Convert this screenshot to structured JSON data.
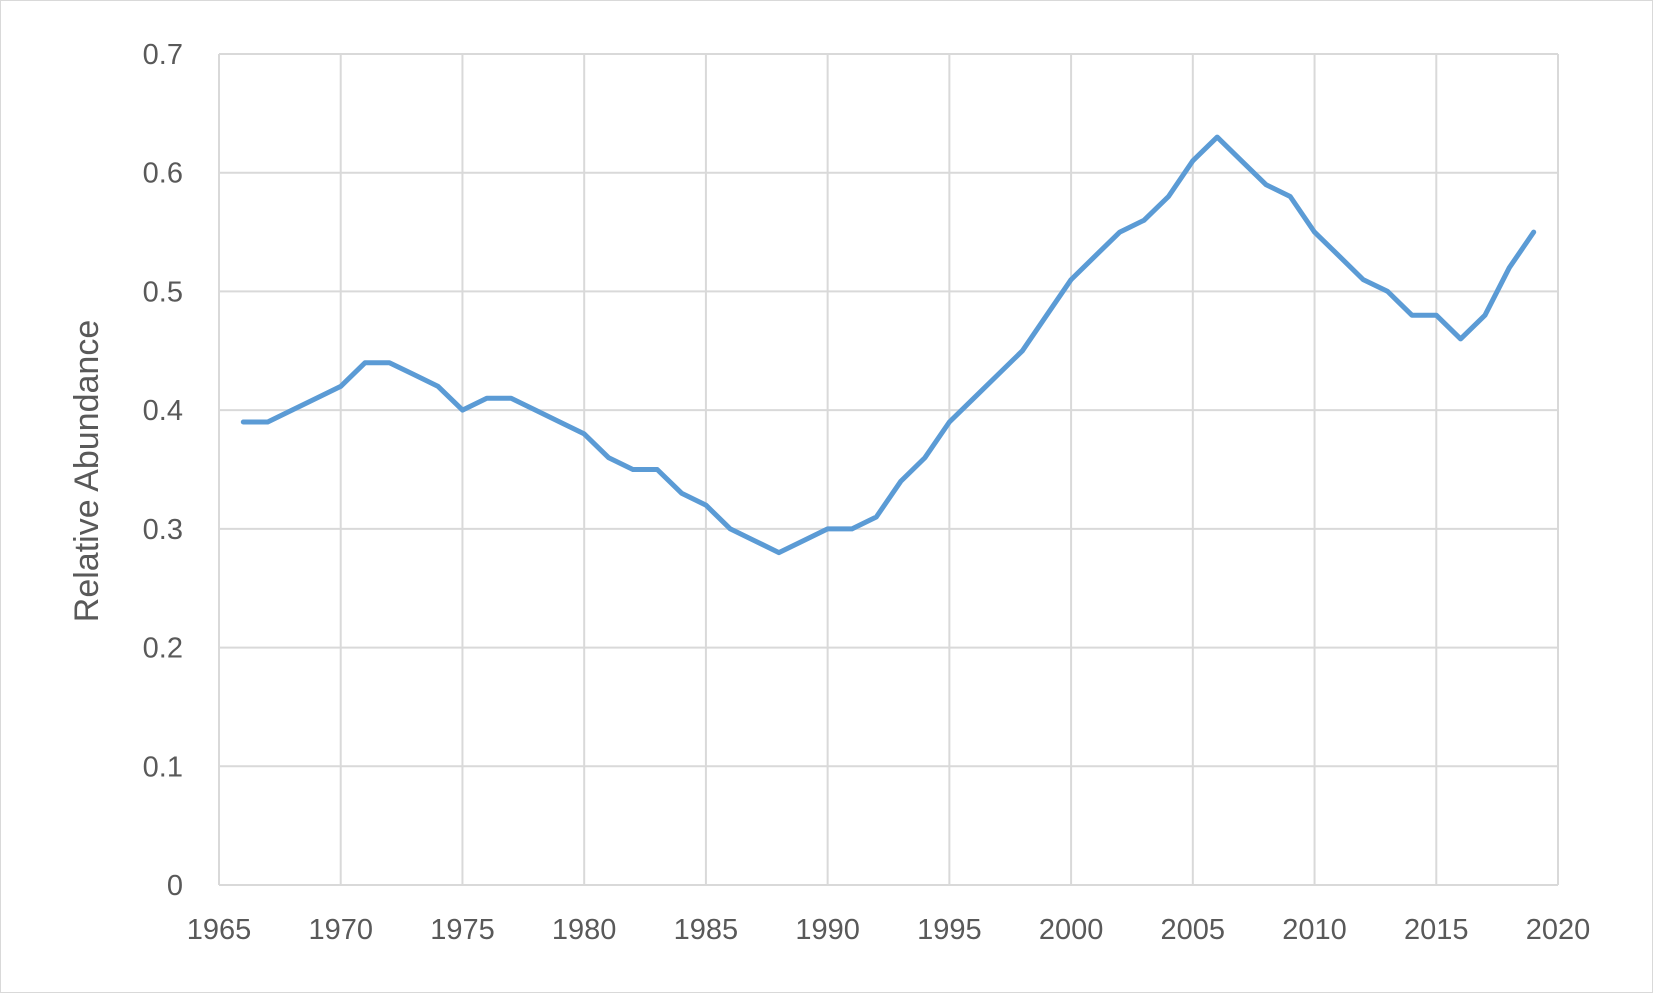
{
  "chart_data": {
    "type": "line",
    "title": "",
    "xlabel": "",
    "ylabel": "Relative Abundance",
    "xlim": [
      1965,
      2020
    ],
    "ylim": [
      0,
      0.7
    ],
    "x_ticks": [
      1965,
      1970,
      1975,
      1980,
      1985,
      1990,
      1995,
      2000,
      2005,
      2010,
      2015,
      2020
    ],
    "y_ticks": [
      0,
      0.1,
      0.2,
      0.3,
      0.4,
      0.5,
      0.6,
      0.7
    ],
    "x_tick_labels": [
      "1965",
      "1970",
      "1975",
      "1980",
      "1985",
      "1990",
      "1995",
      "2000",
      "2005",
      "2010",
      "2015",
      "2020"
    ],
    "y_tick_labels": [
      "0",
      "0.1",
      "0.2",
      "0.3",
      "0.4",
      "0.5",
      "0.6",
      "0.7"
    ],
    "grid": true,
    "legend": "none",
    "series": [
      {
        "color": "#5b9bd5",
        "x": [
          1966,
          1967,
          1968,
          1969,
          1970,
          1971,
          1972,
          1973,
          1974,
          1975,
          1976,
          1977,
          1978,
          1979,
          1980,
          1981,
          1982,
          1983,
          1984,
          1985,
          1986,
          1987,
          1988,
          1989,
          1990,
          1991,
          1992,
          1993,
          1994,
          1995,
          1996,
          1997,
          1998,
          1999,
          2000,
          2001,
          2002,
          2003,
          2004,
          2005,
          2006,
          2007,
          2008,
          2009,
          2010,
          2011,
          2012,
          2013,
          2014,
          2015,
          2016,
          2017,
          2018,
          2019
        ],
        "y": [
          0.39,
          0.39,
          0.4,
          0.41,
          0.42,
          0.44,
          0.44,
          0.43,
          0.42,
          0.4,
          0.41,
          0.41,
          0.4,
          0.39,
          0.38,
          0.36,
          0.35,
          0.35,
          0.33,
          0.32,
          0.3,
          0.29,
          0.28,
          0.29,
          0.3,
          0.3,
          0.31,
          0.34,
          0.36,
          0.39,
          0.41,
          0.43,
          0.45,
          0.48,
          0.51,
          0.53,
          0.55,
          0.56,
          0.58,
          0.61,
          0.63,
          0.61,
          0.59,
          0.58,
          0.55,
          0.53,
          0.51,
          0.5,
          0.48,
          0.48,
          0.46,
          0.48,
          0.52,
          0.55
        ]
      }
    ],
    "colors": {
      "gridline": "#d9d9d9",
      "text": "#595959",
      "line": "#5b9bd5"
    }
  }
}
